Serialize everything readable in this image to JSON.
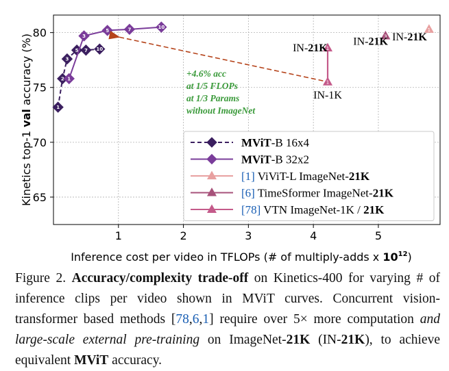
{
  "chart_data": {
    "type": "line",
    "xlabel_prefix": "Inference cost per video in TFLOPs (# of multiply-adds x ",
    "xlabel_unit_base": "10",
    "xlabel_unit_exp": "12",
    "xlabel_suffix": ")",
    "ylabel_prefix": "Kinetics top-1 ",
    "ylabel_bold": "val",
    "ylabel_suffix": " accuracy (%)",
    "xlim": [
      0.0,
      5.95
    ],
    "ylim": [
      62.5,
      81.6
    ],
    "xticks": [
      1,
      2,
      3,
      4,
      5
    ],
    "yticks": [
      65,
      70,
      75,
      80
    ],
    "grid": true,
    "legend_position": "center-right",
    "series": [
      {
        "name_bold": "MViT",
        "name_rest": "-B 16x4",
        "style": "dashed",
        "color": "#3b1f5f",
        "marker": "diamond",
        "x": [
          0.07,
          0.14,
          0.21,
          0.36,
          0.5,
          0.71
        ],
        "y": [
          73.2,
          75.8,
          77.6,
          78.4,
          78.4,
          78.5
        ],
        "labels": [
          "1",
          "2",
          "3",
          "5",
          "7",
          "10"
        ]
      },
      {
        "name_bold": "MViT",
        "name_rest": "-B 32x2",
        "style": "solid",
        "color": "#7a3c9a",
        "marker": "diamond",
        "x": [
          0.24,
          0.47,
          0.83,
          1.17,
          1.66
        ],
        "y": [
          75.8,
          79.7,
          80.2,
          80.3,
          80.5
        ],
        "labels": [
          "1",
          "3",
          "5",
          "7",
          "10"
        ]
      },
      {
        "name_ref": "[1]",
        "name_rest": " ViViT-L ImageNet-",
        "name_bold_suffix": "21K",
        "color": "#e8a0a0",
        "marker": "triangle",
        "x": [
          5.78
        ],
        "y": [
          80.3
        ],
        "labels": [
          "1"
        ]
      },
      {
        "name_ref": "[6]",
        "name_rest": " TimeSformer ImageNet-",
        "name_bold_suffix": "21K",
        "color": "#a7527a",
        "marker": "triangle",
        "x": [
          5.11
        ],
        "y": [
          79.7
        ],
        "labels": [
          "3"
        ]
      },
      {
        "name_ref": "[78]",
        "name_rest": " VTN ImageNet-1K / ",
        "name_bold_suffix": "21K",
        "color": "#c45a8a",
        "marker": "triangle",
        "x": [
          4.22,
          4.22
        ],
        "y": [
          75.5,
          78.6
        ],
        "labels": [
          "1",
          "1"
        ]
      }
    ],
    "point_annotations": [
      {
        "prefix": "IN-",
        "bold": "21K",
        "x": 3.95,
        "y": 78.3
      },
      {
        "prefix": "IN-",
        "bold": "21K",
        "x": 4.88,
        "y": 78.9
      },
      {
        "prefix": "IN-",
        "bold": "21K",
        "x": 5.48,
        "y": 79.3
      },
      {
        "prefix": "IN-1K",
        "bold": "",
        "x": 4.22,
        "y": 74.0
      }
    ],
    "arrow": {
      "from_x": 4.15,
      "from_y": 75.6,
      "to_x": 0.93,
      "to_y": 79.8,
      "color": "#b5431a"
    },
    "callout": {
      "color": "#3a9a3a",
      "line1_bold": "+4.6%",
      "line1_rest": " acc",
      "line2_prefix": "at ",
      "line2_bold": "1/5",
      "line2_rest": " FLOPs",
      "line3_prefix": "at ",
      "line3_bold": "1/3",
      "line3_rest": " Params",
      "line4_prefix": "without ",
      "line4_bold": "ImageNet"
    }
  },
  "caption": {
    "fig_label": "Figure 2.",
    "bold_title": "Accuracy/complexity trade-off",
    "text1": " on Kinetics-400 for varying # of inference clips per video shown in MViT curves. Concurrent vision-transformer based methods ",
    "refs_open": "[",
    "ref1": "78",
    "ref_sep1": ",",
    "ref2": "6",
    "ref_sep2": ",",
    "ref3": "1",
    "refs_close": "]",
    "text2": " require over 5× more computation ",
    "italic": "and large-scale external pre-training",
    "text3": " on ImageNet-",
    "bold2": "21K",
    "text4": " (IN-",
    "bold3": "21K",
    "text5": "), to achieve equivalent ",
    "bold4": "MViT",
    "text6": " accuracy."
  }
}
